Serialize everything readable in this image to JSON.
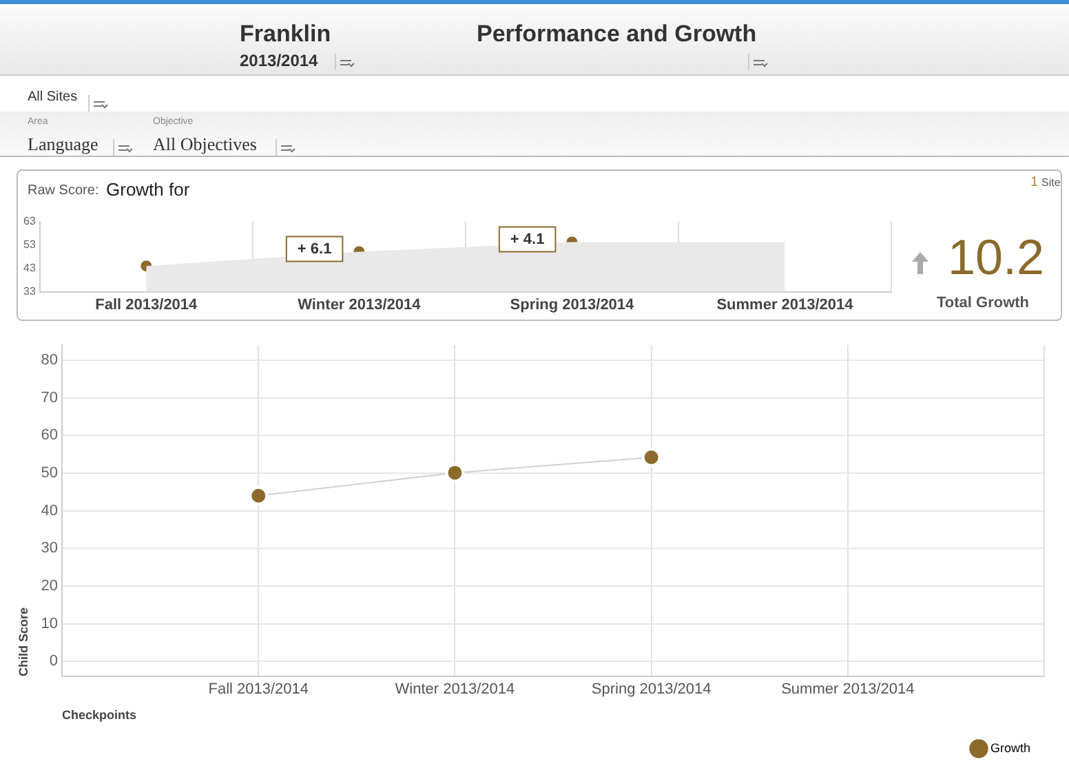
{
  "chart_data": [
    {
      "type": "line",
      "title": "Growth for",
      "categories": [
        "Fall 2013/2014",
        "Winter 2013/2014",
        "Spring 2013/2014",
        "Summer 2013/2014"
      ],
      "series": [
        {
          "type": "area",
          "color": "#e9e9e9",
          "values": [
            44,
            50.1,
            54.2,
            54.2
          ]
        },
        {
          "type": "scatter",
          "color": "#8b6a2b",
          "marker": "circle",
          "values": [
            44,
            50.1,
            54.2,
            null
          ]
        }
      ],
      "ylim": [
        33,
        63
      ],
      "yticks": [
        33,
        43,
        53,
        63
      ],
      "annotations": [
        "Franklin",
        "2013/2014",
        "Performance and Growth",
        "All Sites",
        "Area",
        "Language",
        "Objective",
        "All Objectives",
        "Raw Score:",
        "1",
        "Site",
        "10.2",
        "Total Growth",
        {
          "text": "+ 6.1",
          "x": "Winter 2013/2014",
          "y": 50.1
        },
        {
          "text": "+ 4.1",
          "x": "Spring 2013/2014",
          "y": 54.2
        }
      ]
    },
    {
      "type": "line",
      "xlabel": "Checkpoints",
      "ylabel": "Child Score",
      "categories": [
        null,
        "Fall 2013/2014",
        "Winter 2013/2014",
        "Spring 2013/2014",
        "Summer 2013/2014",
        null
      ],
      "series": [
        {
          "name": "Growth",
          "color": "#8b6a2b",
          "values": [
            null,
            44,
            50.1,
            54.2,
            null,
            null
          ]
        }
      ],
      "ylim": [
        -4,
        84
      ],
      "yticks": [
        0,
        10,
        20,
        30,
        40,
        50,
        60,
        70,
        80
      ],
      "grid": true,
      "legend": "bottom right",
      "marker": "circle"
    }
  ]
}
